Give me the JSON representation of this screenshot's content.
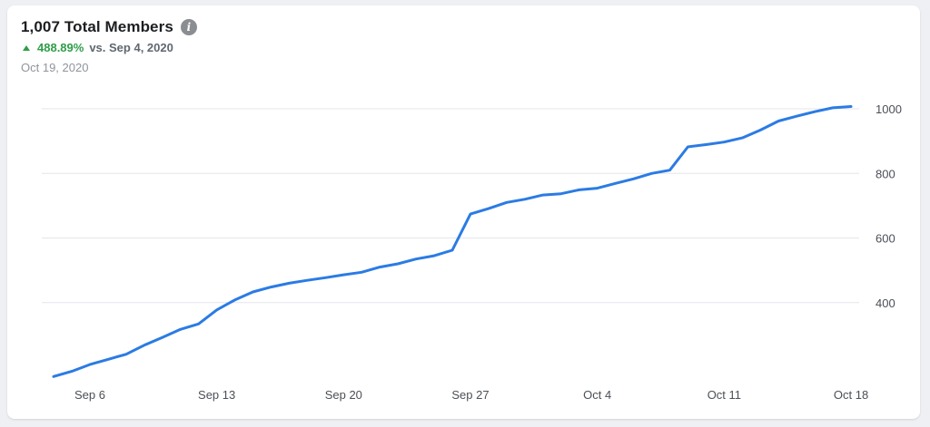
{
  "header": {
    "title": "1,007 Total Members",
    "info_icon": "info-icon",
    "change_percent": "488.89%",
    "change_compare": "vs. Sep 4, 2020",
    "date": "Oct 19, 2020",
    "trend_icon": "triangle-up-icon"
  },
  "colors": {
    "line": "#2b7be4",
    "positive": "#2e9e47",
    "grid": "#e4e6eb"
  },
  "chart_data": {
    "type": "line",
    "title": "1,007 Total Members",
    "xlabel": "",
    "ylabel": "",
    "x_ticks": [
      "Sep 6",
      "Sep 13",
      "Sep 20",
      "Sep 27",
      "Oct 4",
      "Oct 11",
      "Oct 18"
    ],
    "y_ticks": [
      400,
      600,
      800,
      1000
    ],
    "ylim": [
      200,
      1000
    ],
    "y_axis_position": "right",
    "grid": true,
    "x": [
      "Sep 5",
      "Sep 6",
      "Sep 7",
      "Sep 8",
      "Sep 9",
      "Sep 10",
      "Sep 11",
      "Sep 12",
      "Sep 13",
      "Sep 14",
      "Sep 15",
      "Sep 16",
      "Sep 17",
      "Sep 18",
      "Sep 19",
      "Sep 20",
      "Sep 21",
      "Sep 22",
      "Sep 23",
      "Sep 24",
      "Sep 25",
      "Sep 26",
      "Sep 27",
      "Sep 28",
      "Sep 29",
      "Sep 30",
      "Oct 1",
      "Oct 2",
      "Oct 3",
      "Oct 4",
      "Oct 5",
      "Oct 6",
      "Oct 7",
      "Oct 8",
      "Oct 9",
      "Oct 10",
      "Oct 11",
      "Oct 12",
      "Oct 13",
      "Oct 14",
      "Oct 15",
      "Oct 16",
      "Oct 17",
      "Oct 18",
      "Oct 19"
    ],
    "series": [
      {
        "values": [
          171,
          187,
          208,
          224,
          240,
          268,
          292,
          317,
          334,
          377,
          408,
          433,
          448,
          460,
          469,
          477,
          486,
          494,
          510,
          520,
          535,
          545,
          562,
          674,
          691,
          710,
          720,
          733,
          737,
          749,
          754,
          769,
          783,
          800,
          810,
          882,
          889,
          897,
          910,
          934,
          962,
          977,
          991,
          1003,
          1007
        ]
      }
    ]
  }
}
